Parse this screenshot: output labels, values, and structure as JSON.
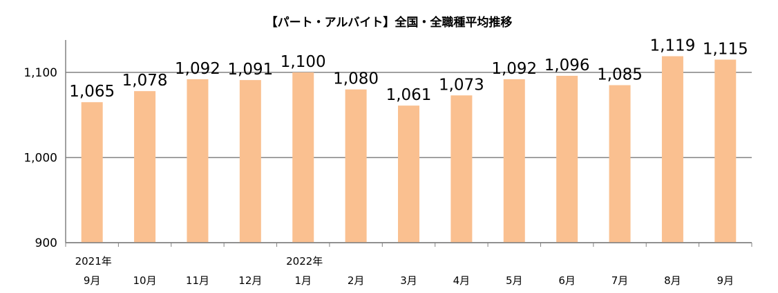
{
  "chart_data": {
    "type": "bar",
    "title": "【パート・アルバイト】全国・全職種平均推移",
    "categories": [
      "9月",
      "10月",
      "11月",
      "12月",
      "1月",
      "2月",
      "3月",
      "4月",
      "5月",
      "6月",
      "7月",
      "8月",
      "9月"
    ],
    "year_labels": [
      {
        "index": 0,
        "text": "2021年"
      },
      {
        "index": 4,
        "text": "2022年"
      }
    ],
    "values": [
      1065,
      1078,
      1092,
      1091,
      1100,
      1080,
      1061,
      1073,
      1092,
      1096,
      1085,
      1119,
      1115
    ],
    "data_labels": [
      "1,065",
      "1,078",
      "1,092",
      "1,091",
      "1,100",
      "1,080",
      "1,061",
      "1,073",
      "1,092",
      "1,096",
      "1,085",
      "1,119",
      "1,115"
    ],
    "ylim": [
      900,
      1140
    ],
    "yticks": [
      900,
      1000,
      1100
    ],
    "ytick_labels": [
      "900",
      "1,000",
      "1,100"
    ],
    "xlabel": "",
    "ylabel": "",
    "grid": true,
    "bar_color": "#FAC090",
    "grid_color": "#808080"
  }
}
